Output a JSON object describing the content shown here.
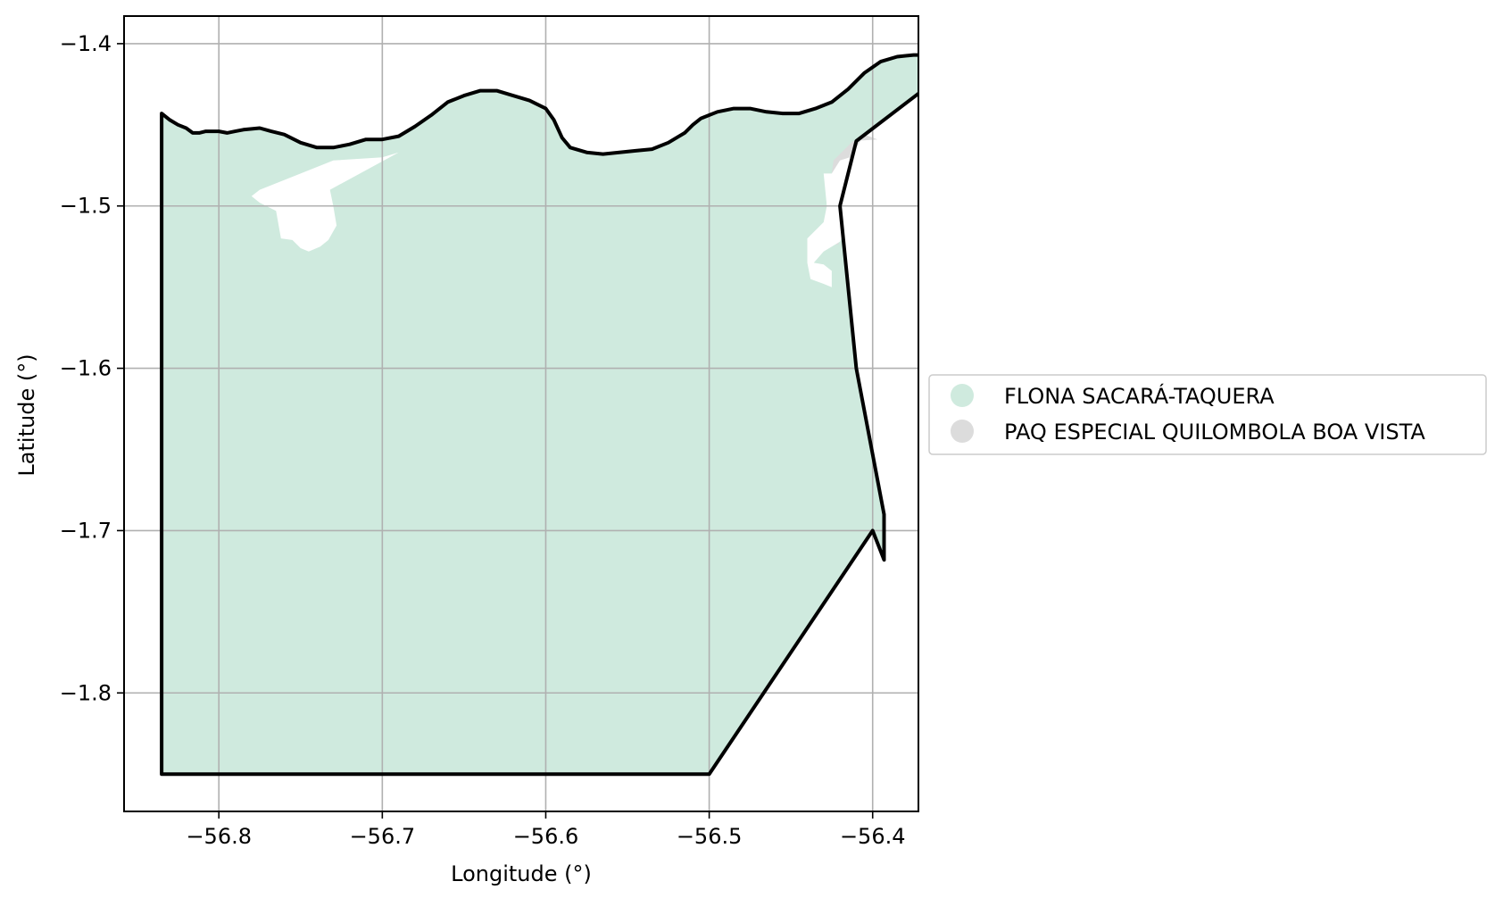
{
  "chart_data": {
    "type": "map",
    "xlabel": "Longitude (°)",
    "ylabel": "Latitude (°)",
    "xlim": [
      -56.858,
      -56.372
    ],
    "ylim": [
      -1.873,
      -1.383
    ],
    "xticks": [
      -56.8,
      -56.7,
      -56.6,
      -56.5,
      -56.4
    ],
    "xtick_labels": [
      "−56.8",
      "−56.7",
      "−56.6",
      "−56.5",
      "−56.4"
    ],
    "yticks": [
      -1.4,
      -1.5,
      -1.6,
      -1.7,
      -1.8
    ],
    "ytick_labels": [
      "−1.4",
      "−1.5",
      "−1.6",
      "−1.7",
      "−1.8"
    ],
    "grid": true,
    "legend_position": "right",
    "legend": [
      {
        "label": "FLONA SACARÁ-TAQUERA",
        "color": "#cfeade"
      },
      {
        "label": "PAQ ESPECIAL QUILOMBOLA BOA VISTA",
        "color": "#dcdcdc"
      }
    ],
    "boundary": [
      [
        -56.835,
        -1.443
      ],
      [
        -56.83,
        -1.447
      ],
      [
        -56.825,
        -1.45
      ],
      [
        -56.82,
        -1.452
      ],
      [
        -56.816,
        -1.455
      ],
      [
        -56.812,
        -1.455
      ],
      [
        -56.808,
        -1.454
      ],
      [
        -56.8,
        -1.454
      ],
      [
        -56.795,
        -1.455
      ],
      [
        -56.79,
        -1.454
      ],
      [
        -56.785,
        -1.453
      ],
      [
        -56.775,
        -1.452
      ],
      [
        -56.768,
        -1.454
      ],
      [
        -56.76,
        -1.456
      ],
      [
        -56.75,
        -1.461
      ],
      [
        -56.74,
        -1.464
      ],
      [
        -56.73,
        -1.464
      ],
      [
        -56.72,
        -1.462
      ],
      [
        -56.71,
        -1.459
      ],
      [
        -56.7,
        -1.459
      ],
      [
        -56.69,
        -1.457
      ],
      [
        -56.68,
        -1.451
      ],
      [
        -56.67,
        -1.444
      ],
      [
        -56.66,
        -1.436
      ],
      [
        -56.65,
        -1.432
      ],
      [
        -56.64,
        -1.429
      ],
      [
        -56.63,
        -1.429
      ],
      [
        -56.62,
        -1.432
      ],
      [
        -56.61,
        -1.435
      ],
      [
        -56.6,
        -1.44
      ],
      [
        -56.595,
        -1.447
      ],
      [
        -56.59,
        -1.458
      ],
      [
        -56.585,
        -1.464
      ],
      [
        -56.575,
        -1.467
      ],
      [
        -56.565,
        -1.468
      ],
      [
        -56.555,
        -1.467
      ],
      [
        -56.545,
        -1.466
      ],
      [
        -56.535,
        -1.465
      ],
      [
        -56.525,
        -1.461
      ],
      [
        -56.515,
        -1.455
      ],
      [
        -56.51,
        -1.45
      ],
      [
        -56.505,
        -1.446
      ],
      [
        -56.495,
        -1.442
      ],
      [
        -56.485,
        -1.44
      ],
      [
        -56.475,
        -1.44
      ],
      [
        -56.465,
        -1.442
      ],
      [
        -56.455,
        -1.443
      ],
      [
        -56.445,
        -1.443
      ],
      [
        -56.435,
        -1.44
      ],
      [
        -56.425,
        -1.436
      ],
      [
        -56.415,
        -1.428
      ],
      [
        -56.405,
        -1.418
      ],
      [
        -56.395,
        -1.411
      ],
      [
        -56.385,
        -1.408
      ],
      [
        -56.375,
        -1.407
      ],
      [
        -56.365,
        -1.407
      ],
      [
        -56.355,
        -1.408
      ],
      [
        -56.348,
        -1.409
      ],
      [
        -56.345,
        -1.41
      ],
      [
        -56.41,
        -1.46
      ],
      [
        -56.42,
        -1.5
      ],
      [
        -56.41,
        -1.6
      ],
      [
        -56.393,
        -1.69
      ],
      [
        -56.393,
        -1.718
      ],
      [
        -56.4,
        -1.7
      ],
      [
        -56.5,
        -1.85
      ],
      [
        -56.835,
        -1.85
      ]
    ],
    "regions": [
      {
        "name": "FLONA SACARÁ-TAQUERA",
        "color": "#cfeade",
        "polygon": [
          [
            -56.835,
            -1.443
          ],
          [
            -56.83,
            -1.447
          ],
          [
            -56.825,
            -1.45
          ],
          [
            -56.82,
            -1.452
          ],
          [
            -56.816,
            -1.455
          ],
          [
            -56.812,
            -1.455
          ],
          [
            -56.808,
            -1.454
          ],
          [
            -56.8,
            -1.454
          ],
          [
            -56.795,
            -1.455
          ],
          [
            -56.79,
            -1.454
          ],
          [
            -56.785,
            -1.453
          ],
          [
            -56.775,
            -1.452
          ],
          [
            -56.768,
            -1.454
          ],
          [
            -56.76,
            -1.456
          ],
          [
            -56.75,
            -1.461
          ],
          [
            -56.74,
            -1.464
          ],
          [
            -56.73,
            -1.464
          ],
          [
            -56.72,
            -1.462
          ],
          [
            -56.71,
            -1.459
          ],
          [
            -56.7,
            -1.459
          ],
          [
            -56.69,
            -1.457
          ],
          [
            -56.68,
            -1.451
          ],
          [
            -56.67,
            -1.444
          ],
          [
            -56.66,
            -1.436
          ],
          [
            -56.65,
            -1.432
          ],
          [
            -56.64,
            -1.429
          ],
          [
            -56.63,
            -1.429
          ],
          [
            -56.62,
            -1.432
          ],
          [
            -56.61,
            -1.435
          ],
          [
            -56.6,
            -1.44
          ],
          [
            -56.595,
            -1.447
          ],
          [
            -56.59,
            -1.458
          ],
          [
            -56.585,
            -1.464
          ],
          [
            -56.575,
            -1.467
          ],
          [
            -56.565,
            -1.468
          ],
          [
            -56.555,
            -1.467
          ],
          [
            -56.545,
            -1.466
          ],
          [
            -56.535,
            -1.465
          ],
          [
            -56.525,
            -1.461
          ],
          [
            -56.515,
            -1.455
          ],
          [
            -56.51,
            -1.45
          ],
          [
            -56.505,
            -1.446
          ],
          [
            -56.495,
            -1.442
          ],
          [
            -56.485,
            -1.44
          ],
          [
            -56.475,
            -1.44
          ],
          [
            -56.465,
            -1.442
          ],
          [
            -56.455,
            -1.443
          ],
          [
            -56.445,
            -1.443
          ],
          [
            -56.435,
            -1.44
          ],
          [
            -56.425,
            -1.436
          ],
          [
            -56.415,
            -1.428
          ],
          [
            -56.405,
            -1.418
          ],
          [
            -56.395,
            -1.411
          ],
          [
            -56.385,
            -1.408
          ],
          [
            -56.375,
            -1.407
          ],
          [
            -56.365,
            -1.407
          ],
          [
            -56.355,
            -1.408
          ],
          [
            -56.348,
            -1.409
          ],
          [
            -56.345,
            -1.41
          ],
          [
            -56.41,
            -1.46
          ],
          [
            -56.42,
            -1.5
          ],
          [
            -56.41,
            -1.6
          ],
          [
            -56.393,
            -1.69
          ],
          [
            -56.393,
            -1.718
          ],
          [
            -56.4,
            -1.7
          ],
          [
            -56.5,
            -1.85
          ],
          [
            -56.835,
            -1.85
          ]
        ]
      },
      {
        "name": "PAQ ESPECIAL QUILOMBOLA BOA VISTA",
        "color": "#dcdcdc",
        "polygon": [
          [
            -56.397,
            -1.459
          ],
          [
            -56.405,
            -1.456
          ],
          [
            -56.41,
            -1.464
          ],
          [
            -56.415,
            -1.474
          ],
          [
            -56.418,
            -1.49
          ],
          [
            -56.421,
            -1.524
          ],
          [
            -56.427,
            -1.522
          ],
          [
            -56.43,
            -1.51
          ],
          [
            -56.427,
            -1.495
          ],
          [
            -56.424,
            -1.472
          ],
          [
            -56.412,
            -1.46
          ]
        ]
      }
    ],
    "holes": [
      [
        [
          -56.69,
          -1.467
        ],
        [
          -56.7,
          -1.47
        ],
        [
          -56.73,
          -1.472
        ],
        [
          -56.75,
          -1.48
        ],
        [
          -56.775,
          -1.49
        ],
        [
          -56.78,
          -1.494
        ],
        [
          -56.775,
          -1.498
        ],
        [
          -56.765,
          -1.503
        ],
        [
          -56.762,
          -1.52
        ],
        [
          -56.755,
          -1.521
        ],
        [
          -56.75,
          -1.526
        ],
        [
          -56.745,
          -1.528
        ],
        [
          -56.738,
          -1.525
        ],
        [
          -56.733,
          -1.521
        ],
        [
          -56.728,
          -1.512
        ],
        [
          -56.73,
          -1.5
        ],
        [
          -56.732,
          -1.49
        ]
      ],
      [
        [
          -56.43,
          -1.548
        ],
        [
          -56.425,
          -1.55
        ],
        [
          -56.425,
          -1.54
        ],
        [
          -56.43,
          -1.536
        ],
        [
          -56.436,
          -1.535
        ],
        [
          -56.43,
          -1.528
        ],
        [
          -56.42,
          -1.522
        ],
        [
          -56.415,
          -1.51
        ],
        [
          -56.408,
          -1.5
        ],
        [
          -56.405,
          -1.49
        ],
        [
          -56.41,
          -1.476
        ],
        [
          -56.414,
          -1.47
        ],
        [
          -56.42,
          -1.472
        ],
        [
          -56.425,
          -1.48
        ],
        [
          -56.43,
          -1.48
        ],
        [
          -56.428,
          -1.5
        ],
        [
          -56.43,
          -1.51
        ],
        [
          -56.44,
          -1.52
        ],
        [
          -56.44,
          -1.535
        ],
        [
          -56.438,
          -1.545
        ]
      ]
    ]
  }
}
